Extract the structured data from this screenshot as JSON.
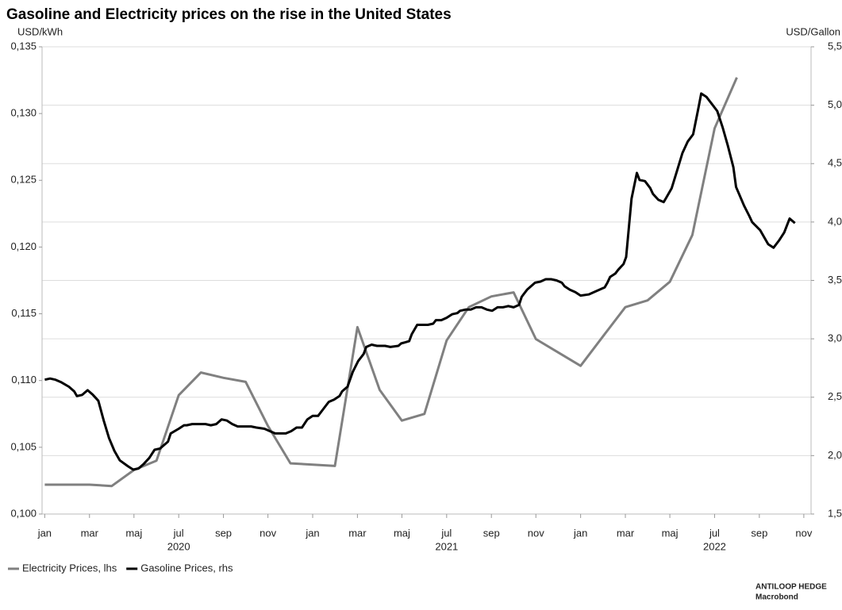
{
  "chart_data": {
    "type": "line",
    "title": "Gasoline and Electricity prices on the rise in the United States",
    "ylabel": "USD/kWh",
    "y2label": "USD/Gallon",
    "source": [
      "ANTILOOP HEDGE",
      "Macrobond"
    ],
    "xlim": [
      2019.99,
      2022.86
    ],
    "xticks": [
      {
        "value": 2020.0,
        "label": "jan"
      },
      {
        "value": 2020.167,
        "label": "mar"
      },
      {
        "value": 2020.333,
        "label": "maj"
      },
      {
        "value": 2020.5,
        "label": "jul"
      },
      {
        "value": 2020.667,
        "label": "sep"
      },
      {
        "value": 2020.833,
        "label": "nov"
      },
      {
        "value": 2021.0,
        "label": "jan"
      },
      {
        "value": 2021.167,
        "label": "mar"
      },
      {
        "value": 2021.333,
        "label": "maj"
      },
      {
        "value": 2021.5,
        "label": "jul"
      },
      {
        "value": 2021.667,
        "label": "sep"
      },
      {
        "value": 2021.833,
        "label": "nov"
      },
      {
        "value": 2022.0,
        "label": "jan"
      },
      {
        "value": 2022.167,
        "label": "mar"
      },
      {
        "value": 2022.333,
        "label": "maj"
      },
      {
        "value": 2022.5,
        "label": "jul"
      },
      {
        "value": 2022.667,
        "label": "sep"
      },
      {
        "value": 2022.833,
        "label": "nov"
      }
    ],
    "xgroups": [
      {
        "value": 2020.5,
        "label": "2020"
      },
      {
        "value": 2021.5,
        "label": "2021"
      },
      {
        "value": 2022.5,
        "label": "2022"
      }
    ],
    "ylim": [
      0.1,
      0.135
    ],
    "yticks": [
      {
        "value": 0.1,
        "label": "0,100"
      },
      {
        "value": 0.105,
        "label": "0,105"
      },
      {
        "value": 0.11,
        "label": "0,110"
      },
      {
        "value": 0.115,
        "label": "0,115"
      },
      {
        "value": 0.12,
        "label": "0,120"
      },
      {
        "value": 0.125,
        "label": "0,125"
      },
      {
        "value": 0.13,
        "label": "0,130"
      },
      {
        "value": 0.135,
        "label": "0,135"
      }
    ],
    "y2lim": [
      1.5,
      5.5
    ],
    "y2ticks": [
      {
        "value": 1.5,
        "label": "1,5"
      },
      {
        "value": 2.0,
        "label": "2,0"
      },
      {
        "value": 2.5,
        "label": "2,5"
      },
      {
        "value": 3.0,
        "label": "3,0"
      },
      {
        "value": 3.5,
        "label": "3,5"
      },
      {
        "value": 4.0,
        "label": "4,0"
      },
      {
        "value": 4.5,
        "label": "4,5"
      },
      {
        "value": 5.0,
        "label": "5,0"
      },
      {
        "value": 5.5,
        "label": "5,5"
      }
    ],
    "grid": "y2",
    "legend": "bottom-left",
    "series": [
      {
        "name": "Electricity Prices, lhs",
        "color": "#808080",
        "axis": "y",
        "x": [
          2020.0,
          2020.083,
          2020.167,
          2020.25,
          2020.333,
          2020.417,
          2020.5,
          2020.583,
          2020.667,
          2020.75,
          2020.833,
          2020.917,
          2021.0,
          2021.083,
          2021.167,
          2021.25,
          2021.333,
          2021.417,
          2021.5,
          2021.583,
          2021.667,
          2021.75,
          2021.833,
          2021.917,
          2022.0,
          2022.083,
          2022.167,
          2022.25,
          2022.333,
          2022.417,
          2022.5,
          2022.583
        ],
        "values": [
          0.1022,
          0.1022,
          0.1022,
          0.1021,
          0.1033,
          0.104,
          0.1089,
          0.1106,
          0.1102,
          0.1099,
          0.1066,
          0.1038,
          0.1037,
          0.1036,
          0.114,
          0.1093,
          0.107,
          0.1075,
          0.113,
          0.1155,
          0.1163,
          0.1166,
          0.1131,
          0.1121,
          0.1111,
          0.1133,
          0.1155,
          0.116,
          0.1174,
          0.1209,
          0.1289,
          0.1327
        ]
      },
      {
        "name": "Gasoline Prices, rhs",
        "color": "#000000",
        "axis": "y2",
        "x": [
          2020.0,
          2020.02,
          2020.04,
          2020.06,
          2020.09,
          2020.11,
          2020.12,
          2020.14,
          2020.16,
          2020.18,
          2020.2,
          2020.22,
          2020.24,
          2020.26,
          2020.28,
          2020.31,
          2020.33,
          2020.35,
          2020.37,
          2020.39,
          2020.41,
          2020.43,
          2020.46,
          2020.47,
          2020.5,
          2020.52,
          2020.53,
          2020.55,
          2020.58,
          2020.6,
          2020.62,
          2020.64,
          2020.66,
          2020.68,
          2020.7,
          2020.72,
          2020.75,
          2020.77,
          2020.79,
          2020.82,
          2020.84,
          2020.86,
          2020.88,
          2020.9,
          2020.92,
          2020.94,
          2020.96,
          2020.98,
          2021.0,
          2021.02,
          2021.04,
          2021.06,
          2021.08,
          2021.1,
          2021.11,
          2021.13,
          2021.15,
          2021.17,
          2021.19,
          2021.2,
          2021.22,
          2021.24,
          2021.27,
          2021.29,
          2021.32,
          2021.33,
          2021.36,
          2021.37,
          2021.39,
          2021.4,
          2021.43,
          2021.45,
          2021.46,
          2021.48,
          2021.5,
          2021.52,
          2021.54,
          2021.55,
          2021.57,
          2021.59,
          2021.61,
          2021.63,
          2021.65,
          2021.67,
          2021.69,
          2021.71,
          2021.73,
          2021.75,
          2021.77,
          2021.78,
          2021.8,
          2021.83,
          2021.85,
          2021.87,
          2021.89,
          2021.91,
          2021.93,
          2021.94,
          2021.96,
          2021.98,
          2022.0,
          2022.03,
          2022.05,
          2022.07,
          2022.09,
          2022.1,
          2022.11,
          2022.13,
          2022.14,
          2022.16,
          2022.17,
          2022.19,
          2022.21,
          2022.22,
          2022.24,
          2022.26,
          2022.27,
          2022.29,
          2022.31,
          2022.32,
          2022.34,
          2022.36,
          2022.38,
          2022.4,
          2022.42,
          2022.44,
          2022.45,
          2022.47,
          2022.49,
          2022.51,
          2022.53,
          2022.55,
          2022.57,
          2022.58,
          2022.61,
          2022.63,
          2022.64,
          2022.67,
          2022.69,
          2022.7,
          2022.72,
          2022.74,
          2022.76,
          2022.78,
          2022.8
        ],
        "values": [
          2.65,
          2.66,
          2.65,
          2.63,
          2.59,
          2.55,
          2.51,
          2.52,
          2.56,
          2.52,
          2.47,
          2.3,
          2.15,
          2.04,
          1.96,
          1.91,
          1.88,
          1.89,
          1.93,
          1.98,
          2.05,
          2.06,
          2.12,
          2.19,
          2.23,
          2.26,
          2.26,
          2.27,
          2.27,
          2.27,
          2.26,
          2.27,
          2.31,
          2.3,
          2.27,
          2.25,
          2.25,
          2.25,
          2.24,
          2.23,
          2.21,
          2.19,
          2.19,
          2.19,
          2.21,
          2.24,
          2.24,
          2.31,
          2.34,
          2.34,
          2.4,
          2.46,
          2.48,
          2.51,
          2.55,
          2.59,
          2.72,
          2.81,
          2.87,
          2.93,
          2.95,
          2.94,
          2.94,
          2.93,
          2.94,
          2.96,
          2.98,
          3.04,
          3.12,
          3.12,
          3.12,
          3.13,
          3.16,
          3.16,
          3.18,
          3.21,
          3.22,
          3.24,
          3.25,
          3.25,
          3.27,
          3.27,
          3.25,
          3.24,
          3.27,
          3.27,
          3.28,
          3.27,
          3.29,
          3.36,
          3.42,
          3.48,
          3.49,
          3.51,
          3.51,
          3.5,
          3.48,
          3.45,
          3.42,
          3.4,
          3.37,
          3.38,
          3.4,
          3.42,
          3.44,
          3.48,
          3.53,
          3.56,
          3.59,
          3.64,
          3.7,
          4.2,
          4.42,
          4.36,
          4.35,
          4.29,
          4.24,
          4.19,
          4.17,
          4.21,
          4.29,
          4.44,
          4.59,
          4.69,
          4.75,
          4.98,
          5.1,
          5.07,
          5.01,
          4.95,
          4.81,
          4.65,
          4.47,
          4.3,
          4.14,
          4.05,
          4.0,
          3.93,
          3.85,
          3.81,
          3.78,
          3.84,
          3.91,
          4.03,
          3.99
        ]
      }
    ]
  }
}
